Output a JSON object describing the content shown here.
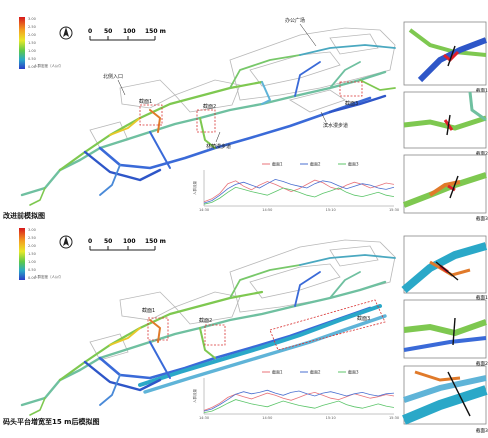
{
  "top_panel": {
    "legend_title": "人群密度（人/㎡）",
    "legend_ticks": [
      "3.00",
      "2.50",
      "2.00",
      "1.50",
      "1.00",
      "0.50",
      "0.00"
    ],
    "scale_labels": [
      "0",
      "50",
      "100",
      "150 m"
    ],
    "labels": {
      "plaza": "办公广场",
      "north_entrance": "北侧入口",
      "water_walk": "滨水漫步道",
      "forest_walk": "林荫漫步道",
      "obs1": "截面1",
      "obs2": "截面2",
      "obs3": "截面3"
    },
    "caption": "改进前模拟图",
    "zoom_labels": [
      "截面1",
      "截面2",
      "截面3"
    ]
  },
  "bottom_panel": {
    "legend_title": "人群密度（人/㎡）",
    "legend_ticks": [
      "3.00",
      "2.50",
      "2.00",
      "1.50",
      "1.00",
      "0.50",
      "0.00"
    ],
    "scale_labels": [
      "0",
      "50",
      "100",
      "150 m"
    ],
    "labels": {
      "obs1": "截面1",
      "obs2": "截面2",
      "obs3": "截面3"
    },
    "caption": "码头平台增宽至15 m后模拟图",
    "zoom_labels": [
      "截面1",
      "截面2",
      "截面3"
    ]
  },
  "colors": {
    "series1": "#e8737a",
    "series2": "#4a6fd0",
    "series3": "#5cc56a",
    "dense": "#e0202a",
    "medium": "#7ed04a",
    "sparse": "#2a5cd0",
    "marker": "#d83030"
  },
  "chart_data": [
    {
      "type": "line",
      "title": "",
      "ylabel": "人群流量",
      "xlabel": "",
      "x_ticks": [
        "14:30",
        "14:50",
        "15:10",
        "15:30"
      ],
      "ylim": [
        0,
        100
      ],
      "legend_position": "top",
      "series": [
        {
          "name": "截面1",
          "color": "#e8737a",
          "values": [
            12,
            20,
            35,
            62,
            70,
            55,
            45,
            58,
            68,
            60,
            50,
            40,
            48,
            60,
            72,
            65,
            52,
            46,
            58,
            66,
            60,
            50,
            56,
            64,
            60
          ]
        },
        {
          "name": "截面2",
          "color": "#4a6fd0",
          "values": [
            8,
            15,
            30,
            48,
            60,
            66,
            58,
            50,
            62,
            74,
            68,
            60,
            55,
            50,
            62,
            70,
            66,
            56,
            48,
            55,
            62,
            58,
            50,
            46,
            52
          ]
        },
        {
          "name": "截面3",
          "color": "#5cc56a",
          "values": [
            5,
            10,
            22,
            38,
            52,
            46,
            40,
            35,
            30,
            40,
            50,
            45,
            38,
            30,
            25,
            35,
            42,
            50,
            38,
            30,
            26,
            32,
            38,
            30,
            26
          ]
        }
      ]
    },
    {
      "type": "line",
      "title": "",
      "ylabel": "人群流量",
      "xlabel": "",
      "x_ticks": [
        "14:30",
        "14:50",
        "15:10",
        "15:30"
      ],
      "ylim": [
        0,
        100
      ],
      "legend_position": "top",
      "series": [
        {
          "name": "截面1",
          "color": "#e8737a",
          "values": [
            10,
            18,
            30,
            46,
            55,
            48,
            42,
            50,
            58,
            52,
            44,
            38,
            46,
            55,
            60,
            52,
            44,
            40,
            48,
            56,
            50,
            44,
            48,
            54,
            50
          ]
        },
        {
          "name": "截面2",
          "color": "#4a6fd0",
          "values": [
            8,
            14,
            26,
            40,
            55,
            62,
            56,
            60,
            66,
            58,
            52,
            60,
            64,
            56,
            50,
            58,
            62,
            56,
            50,
            56,
            60,
            54,
            50,
            56,
            58
          ]
        },
        {
          "name": "截面3",
          "color": "#5cc56a",
          "values": [
            4,
            8,
            18,
            30,
            40,
            34,
            28,
            24,
            20,
            28,
            36,
            30,
            24,
            20,
            16,
            24,
            30,
            36,
            26,
            20,
            16,
            22,
            28,
            22,
            18
          ]
        }
      ]
    }
  ]
}
